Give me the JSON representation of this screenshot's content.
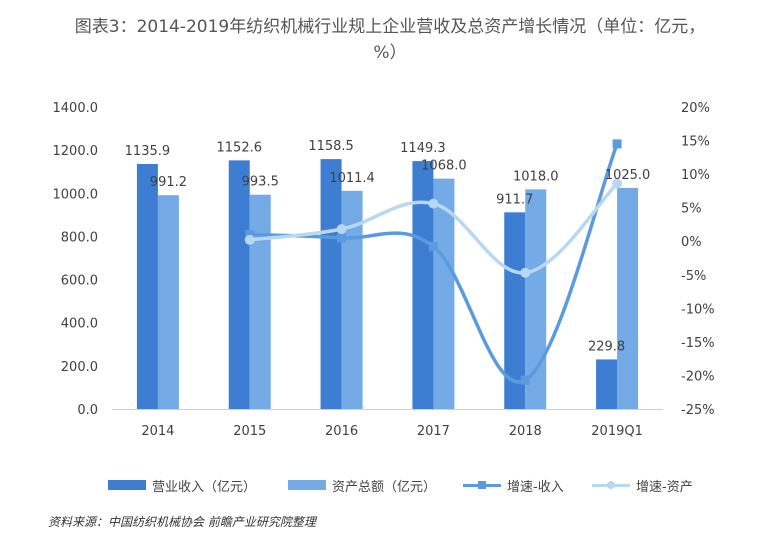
{
  "title": "图表3：2014-2019年纺织机械行业规上企业营收及总资产增长情况（单位：亿元，%）",
  "source": "资料来源：中国纺织机械协会 前瞻产业研究院整理",
  "colors": {
    "revenue_bar": "#3d7ed3",
    "assets_bar": "#74aae6",
    "revenue_growth_line": "#5a9be0",
    "assets_growth_line": "#b8d8f2"
  },
  "chart_data": {
    "type": "bar",
    "categories": [
      "2014",
      "2015",
      "2016",
      "2017",
      "2018",
      "2019Q1"
    ],
    "series": [
      {
        "name": "营业收入（亿元）",
        "kind": "bar",
        "axis": "left",
        "values": [
          1135.9,
          1152.6,
          1158.5,
          1149.3,
          911.7,
          229.8
        ],
        "labels": [
          "1135.9",
          "1152.6",
          "1158.5",
          "1149.3",
          "911.7",
          "229.8"
        ]
      },
      {
        "name": "资产总额（亿元）",
        "kind": "bar",
        "axis": "left",
        "values": [
          991.2,
          993.5,
          1011.4,
          1068.0,
          1018.0,
          1025.0
        ],
        "labels": [
          "991.2",
          "993.5",
          "1011.4",
          "1068.0",
          "1018.0",
          "1025.0"
        ]
      },
      {
        "name": "增速-收入",
        "kind": "line",
        "axis": "right",
        "values": [
          null,
          1.0,
          0.5,
          -0.8,
          -20.7,
          14.5
        ]
      },
      {
        "name": "增速-资产",
        "kind": "line",
        "axis": "right",
        "values": [
          null,
          0.2,
          1.8,
          5.6,
          -4.7,
          8.6
        ]
      }
    ],
    "left_axis": {
      "ylim": [
        0,
        1400
      ],
      "ticks": [
        "0.0",
        "200.0",
        "400.0",
        "600.0",
        "800.0",
        "1000.0",
        "1200.0",
        "1400.0"
      ]
    },
    "right_axis": {
      "ylim": [
        -25,
        20
      ],
      "ticks": [
        "-25%",
        "-20%",
        "-15%",
        "-10%",
        "-5%",
        "0%",
        "5%",
        "10%",
        "15%",
        "20%"
      ]
    },
    "grid": false,
    "legend": "bottom"
  }
}
